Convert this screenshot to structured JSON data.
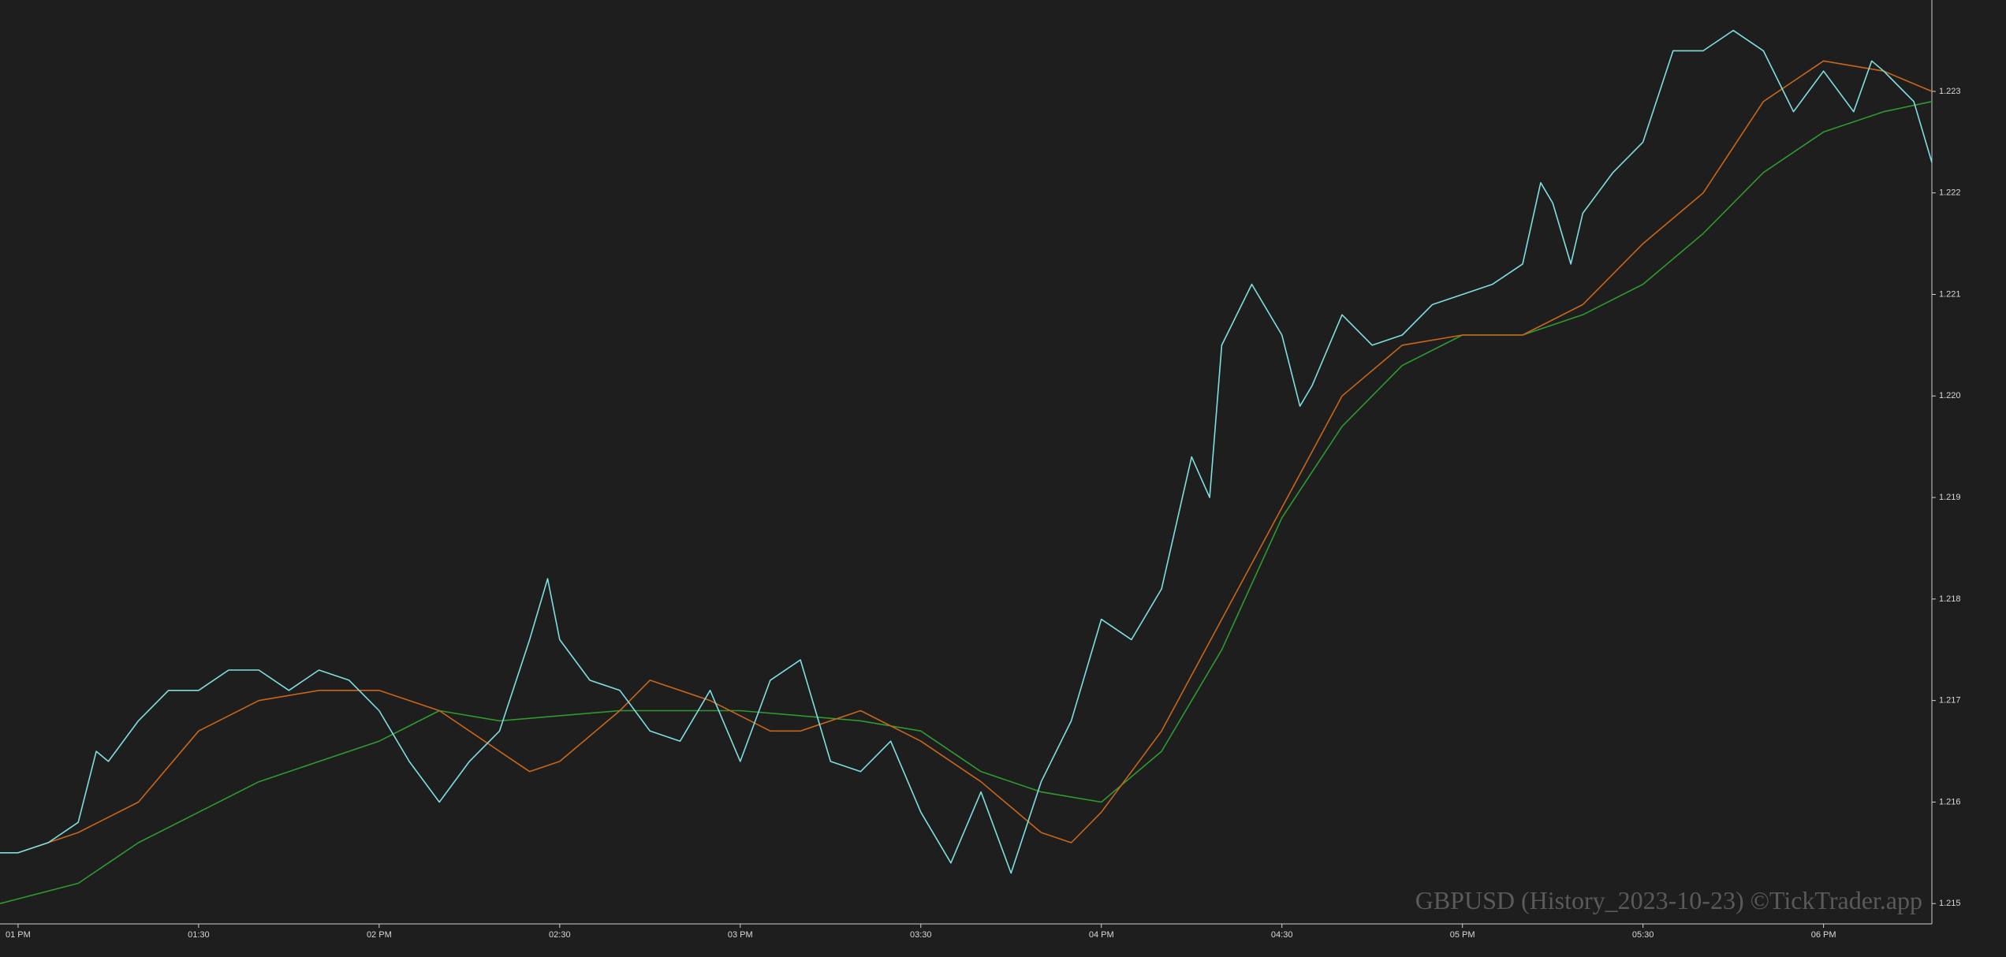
{
  "chart_data": {
    "type": "line",
    "watermark": "GBPUSD (History_2023-10-23) ©TickTrader.app",
    "xlim": [
      777,
      1098
    ],
    "xticks": [
      {
        "value": 780,
        "label": "01 PM"
      },
      {
        "value": 810,
        "label": "01:30"
      },
      {
        "value": 840,
        "label": "02 PM"
      },
      {
        "value": 870,
        "label": "02:30"
      },
      {
        "value": 900,
        "label": "03 PM"
      },
      {
        "value": 930,
        "label": "03:30"
      },
      {
        "value": 960,
        "label": "04 PM"
      },
      {
        "value": 990,
        "label": "04:30"
      },
      {
        "value": 1020,
        "label": "05 PM"
      },
      {
        "value": 1050,
        "label": "05:30"
      },
      {
        "value": 1080,
        "label": "06 PM"
      }
    ],
    "ylim": [
      1.2148,
      1.2239
    ],
    "yticks": [
      1.215,
      1.216,
      1.217,
      1.218,
      1.219,
      {
        "value": 1.22,
        "label": "1.220"
      },
      1.221,
      1.222,
      1.223
    ],
    "series": [
      {
        "color": "#2f9a2f",
        "x": [
          777,
          790,
          800,
          820,
          840,
          850,
          860,
          880,
          900,
          920,
          930,
          940,
          950,
          960,
          970,
          980,
          990,
          1000,
          1010,
          1020,
          1030,
          1040,
          1050,
          1060,
          1070,
          1080,
          1090,
          1098
        ],
        "values": [
          1.215,
          1.2152,
          1.2156,
          1.2162,
          1.2166,
          1.2169,
          1.2168,
          1.2169,
          1.2169,
          1.2168,
          1.2167,
          1.2163,
          1.2161,
          1.216,
          1.2165,
          1.2175,
          1.2188,
          1.2197,
          1.2203,
          1.2206,
          1.2206,
          1.2208,
          1.2211,
          1.2216,
          1.2222,
          1.2226,
          1.2228,
          1.2229
        ]
      },
      {
        "color": "#c8661a",
        "x": [
          780,
          790,
          800,
          810,
          820,
          830,
          840,
          850,
          860,
          865,
          870,
          880,
          885,
          895,
          905,
          910,
          920,
          930,
          940,
          950,
          955,
          960,
          970,
          980,
          990,
          1000,
          1010,
          1020,
          1030,
          1040,
          1050,
          1060,
          1070,
          1080,
          1090,
          1098
        ],
        "values": [
          1.2155,
          1.2157,
          1.216,
          1.2167,
          1.217,
          1.2171,
          1.2171,
          1.2169,
          1.2165,
          1.2163,
          1.2164,
          1.2169,
          1.2172,
          1.217,
          1.2167,
          1.2167,
          1.2169,
          1.2166,
          1.2162,
          1.2157,
          1.2156,
          1.2159,
          1.2167,
          1.2178,
          1.2189,
          1.22,
          1.2205,
          1.2206,
          1.2206,
          1.2209,
          1.2215,
          1.222,
          1.2229,
          1.2233,
          1.2232,
          1.223
        ]
      },
      {
        "color": "#7fdfe0",
        "x": [
          777,
          780,
          785,
          790,
          793,
          795,
          800,
          805,
          810,
          815,
          820,
          825,
          830,
          835,
          840,
          845,
          850,
          855,
          860,
          865,
          868,
          870,
          875,
          880,
          885,
          890,
          895,
          900,
          905,
          910,
          915,
          920,
          925,
          930,
          935,
          940,
          945,
          950,
          955,
          960,
          965,
          970,
          975,
          978,
          980,
          985,
          990,
          993,
          995,
          1000,
          1005,
          1010,
          1015,
          1020,
          1025,
          1030,
          1033,
          1035,
          1038,
          1040,
          1045,
          1050,
          1055,
          1060,
          1065,
          1070,
          1075,
          1080,
          1085,
          1088,
          1090,
          1095,
          1098
        ],
        "values": [
          1.2155,
          1.2155,
          1.2156,
          1.2158,
          1.2165,
          1.2164,
          1.2168,
          1.2171,
          1.2171,
          1.2173,
          1.2173,
          1.2171,
          1.2173,
          1.2172,
          1.2169,
          1.2164,
          1.216,
          1.2164,
          1.2167,
          1.2176,
          1.2182,
          1.2176,
          1.2172,
          1.2171,
          1.2167,
          1.2166,
          1.2171,
          1.2164,
          1.2172,
          1.2174,
          1.2164,
          1.2163,
          1.2166,
          1.2159,
          1.2154,
          1.2161,
          1.2153,
          1.2162,
          1.2168,
          1.2178,
          1.2176,
          1.2181,
          1.2194,
          1.219,
          1.2205,
          1.2211,
          1.2206,
          1.2199,
          1.2201,
          1.2208,
          1.2205,
          1.2206,
          1.2209,
          1.221,
          1.2211,
          1.2213,
          1.2221,
          1.2219,
          1.2213,
          1.2218,
          1.2222,
          1.2225,
          1.2234,
          1.2234,
          1.2236,
          1.2234,
          1.2228,
          1.2232,
          1.2228,
          1.2233,
          1.2232,
          1.2229,
          1.2223
        ]
      }
    ]
  }
}
